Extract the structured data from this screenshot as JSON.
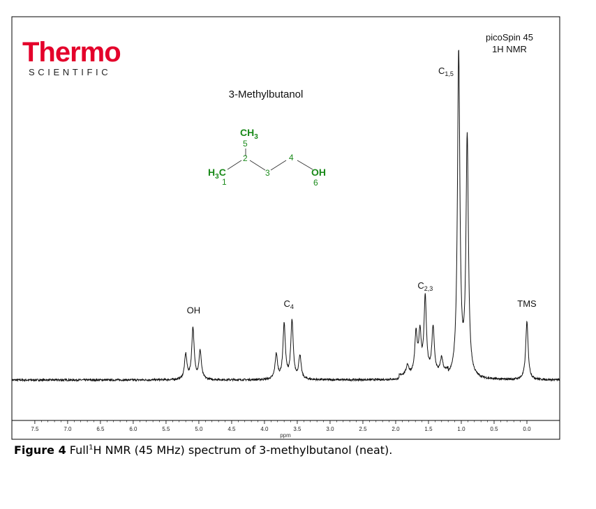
{
  "brand": {
    "name": "Thermo",
    "tagline": "SCIENTIFIC",
    "color": "#e4002b"
  },
  "instrument": {
    "line1": "picoSpin 45",
    "line2": "1H NMR"
  },
  "compound": {
    "name": "3-Methylbutanol",
    "structure_color": "#1a8a1a",
    "labels": {
      "ch3": "CH",
      "ch3_sub": "3",
      "h3c_h": "H",
      "h3c_sub": "3",
      "h3c_c": "C",
      "oh": "OH",
      "n1": "1",
      "n2": "2",
      "n3": "3",
      "n4": "4",
      "n5": "5",
      "n6": "6"
    }
  },
  "caption": {
    "figure_label": "Figure 4",
    "text_pre": "Full",
    "sup": "1",
    "text_post": "H NMR (45 MHz) spectrum of 3-methylbutanol (neat)."
  },
  "chart_data": {
    "type": "line",
    "xlabel": "ppm",
    "ylabel": "",
    "xlim": [
      7.85,
      -0.5
    ],
    "x_reversed": true,
    "grid": false,
    "xticks": [
      {
        "v": 7.5,
        "label": "7.5"
      },
      {
        "v": 7.0,
        "label": "7.0"
      },
      {
        "v": 6.5,
        "label": "6.5"
      },
      {
        "v": 6.0,
        "label": "6.0"
      },
      {
        "v": 5.5,
        "label": "5.5"
      },
      {
        "v": 5.0,
        "label": "5.0"
      },
      {
        "v": 4.5,
        "label": "4.5"
      },
      {
        "v": 4.0,
        "label": "4.0"
      },
      {
        "v": 3.5,
        "label": "3.5"
      },
      {
        "v": 3.0,
        "label": "3.0"
      },
      {
        "v": 2.5,
        "label": "2.5"
      },
      {
        "v": 2.0,
        "label": "2.0"
      },
      {
        "v": 1.5,
        "label": "1.5"
      },
      {
        "v": 1.0,
        "label": "1.0"
      },
      {
        "v": 0.5,
        "label": "0.5"
      },
      {
        "v": 0.0,
        "label": "0.0"
      }
    ],
    "peaks": [
      {
        "label": "OH",
        "sub": "",
        "shift": 5.08,
        "lines": [
          {
            "x": 5.2,
            "h": 0.075
          },
          {
            "x": 5.09,
            "h": 0.155
          },
          {
            "x": 4.98,
            "h": 0.085
          }
        ]
      },
      {
        "label": "C",
        "sub": "4",
        "shift": 3.63,
        "lines": [
          {
            "x": 3.82,
            "h": 0.075
          },
          {
            "x": 3.7,
            "h": 0.165
          },
          {
            "x": 3.58,
            "h": 0.175
          },
          {
            "x": 3.46,
            "h": 0.07
          }
        ]
      },
      {
        "label": "C",
        "sub": "2,3",
        "shift": 1.55,
        "lines": [
          {
            "x": 1.82,
            "h": 0.03
          },
          {
            "x": 1.69,
            "h": 0.12
          },
          {
            "x": 1.63,
            "h": 0.12
          },
          {
            "x": 1.55,
            "h": 0.23
          },
          {
            "x": 1.43,
            "h": 0.14
          },
          {
            "x": 1.3,
            "h": 0.045
          }
        ]
      },
      {
        "label": "C",
        "sub": "1,5",
        "shift": 1.0,
        "lines": [
          {
            "x": 1.04,
            "h": 0.98
          },
          {
            "x": 0.91,
            "h": 0.72
          }
        ]
      },
      {
        "label": "TMS",
        "sub": "",
        "shift": 0.0,
        "lines": [
          {
            "x": 0.0,
            "h": 0.175
          }
        ]
      }
    ]
  }
}
